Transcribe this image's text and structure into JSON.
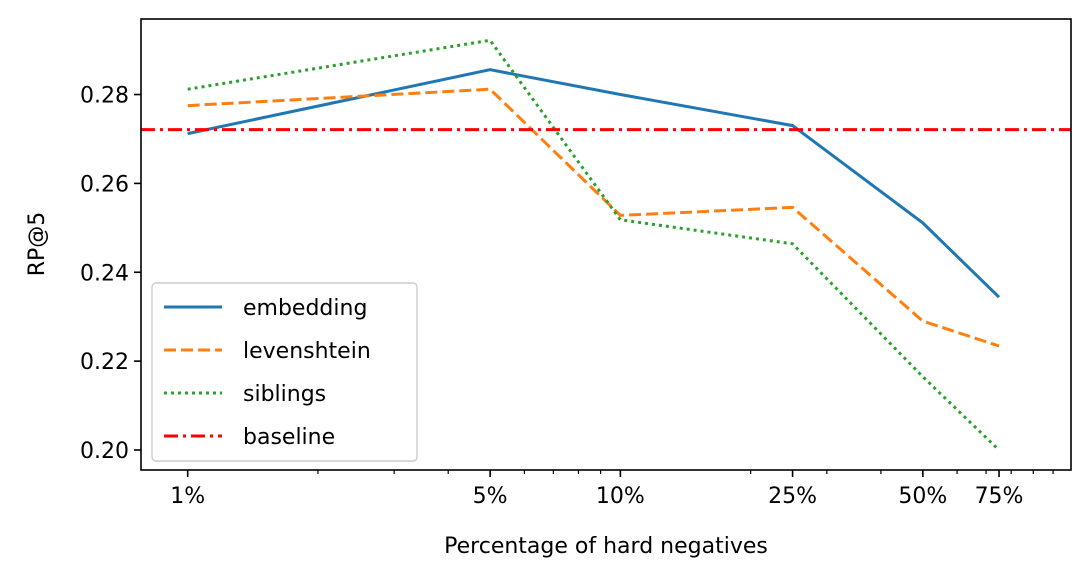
{
  "chart_data": {
    "type": "line",
    "xlabel": "Percentage of hard negatives",
    "ylabel": "RP@5",
    "x_scale": "log",
    "x": [
      1,
      5,
      10,
      25,
      50,
      75
    ],
    "x_tick_labels": [
      "1%",
      "5%",
      "10%",
      "25%",
      "50%",
      "75%"
    ],
    "y_ticks": [
      0.2,
      0.22,
      0.24,
      0.26,
      0.28
    ],
    "y_tick_labels": [
      "0.20",
      "0.22",
      "0.24",
      "0.26",
      "0.28"
    ],
    "xlim": [
      0.78,
      110
    ],
    "ylim": [
      0.1955,
      0.297
    ],
    "grid": false,
    "legend_position": "lower-left",
    "series": [
      {
        "name": "embedding",
        "color": "#1f77b4",
        "style": "solid",
        "values": [
          0.2712,
          0.2856,
          0.28,
          0.273,
          0.2511,
          0.2344
        ]
      },
      {
        "name": "levenshtein",
        "color": "#ff7f0e",
        "style": "dashed",
        "values": [
          0.2775,
          0.2812,
          0.2528,
          0.2546,
          0.229,
          0.2234
        ]
      },
      {
        "name": "siblings",
        "color": "#2ca02c",
        "style": "dotted",
        "values": [
          0.2812,
          0.2922,
          0.2518,
          0.2464,
          0.2165,
          0.2
        ]
      },
      {
        "name": "baseline",
        "color": "#ff0000",
        "style": "dashdot",
        "values": [
          0.2721,
          0.2721,
          0.2721,
          0.2721,
          0.2721,
          0.2721
        ]
      }
    ]
  }
}
